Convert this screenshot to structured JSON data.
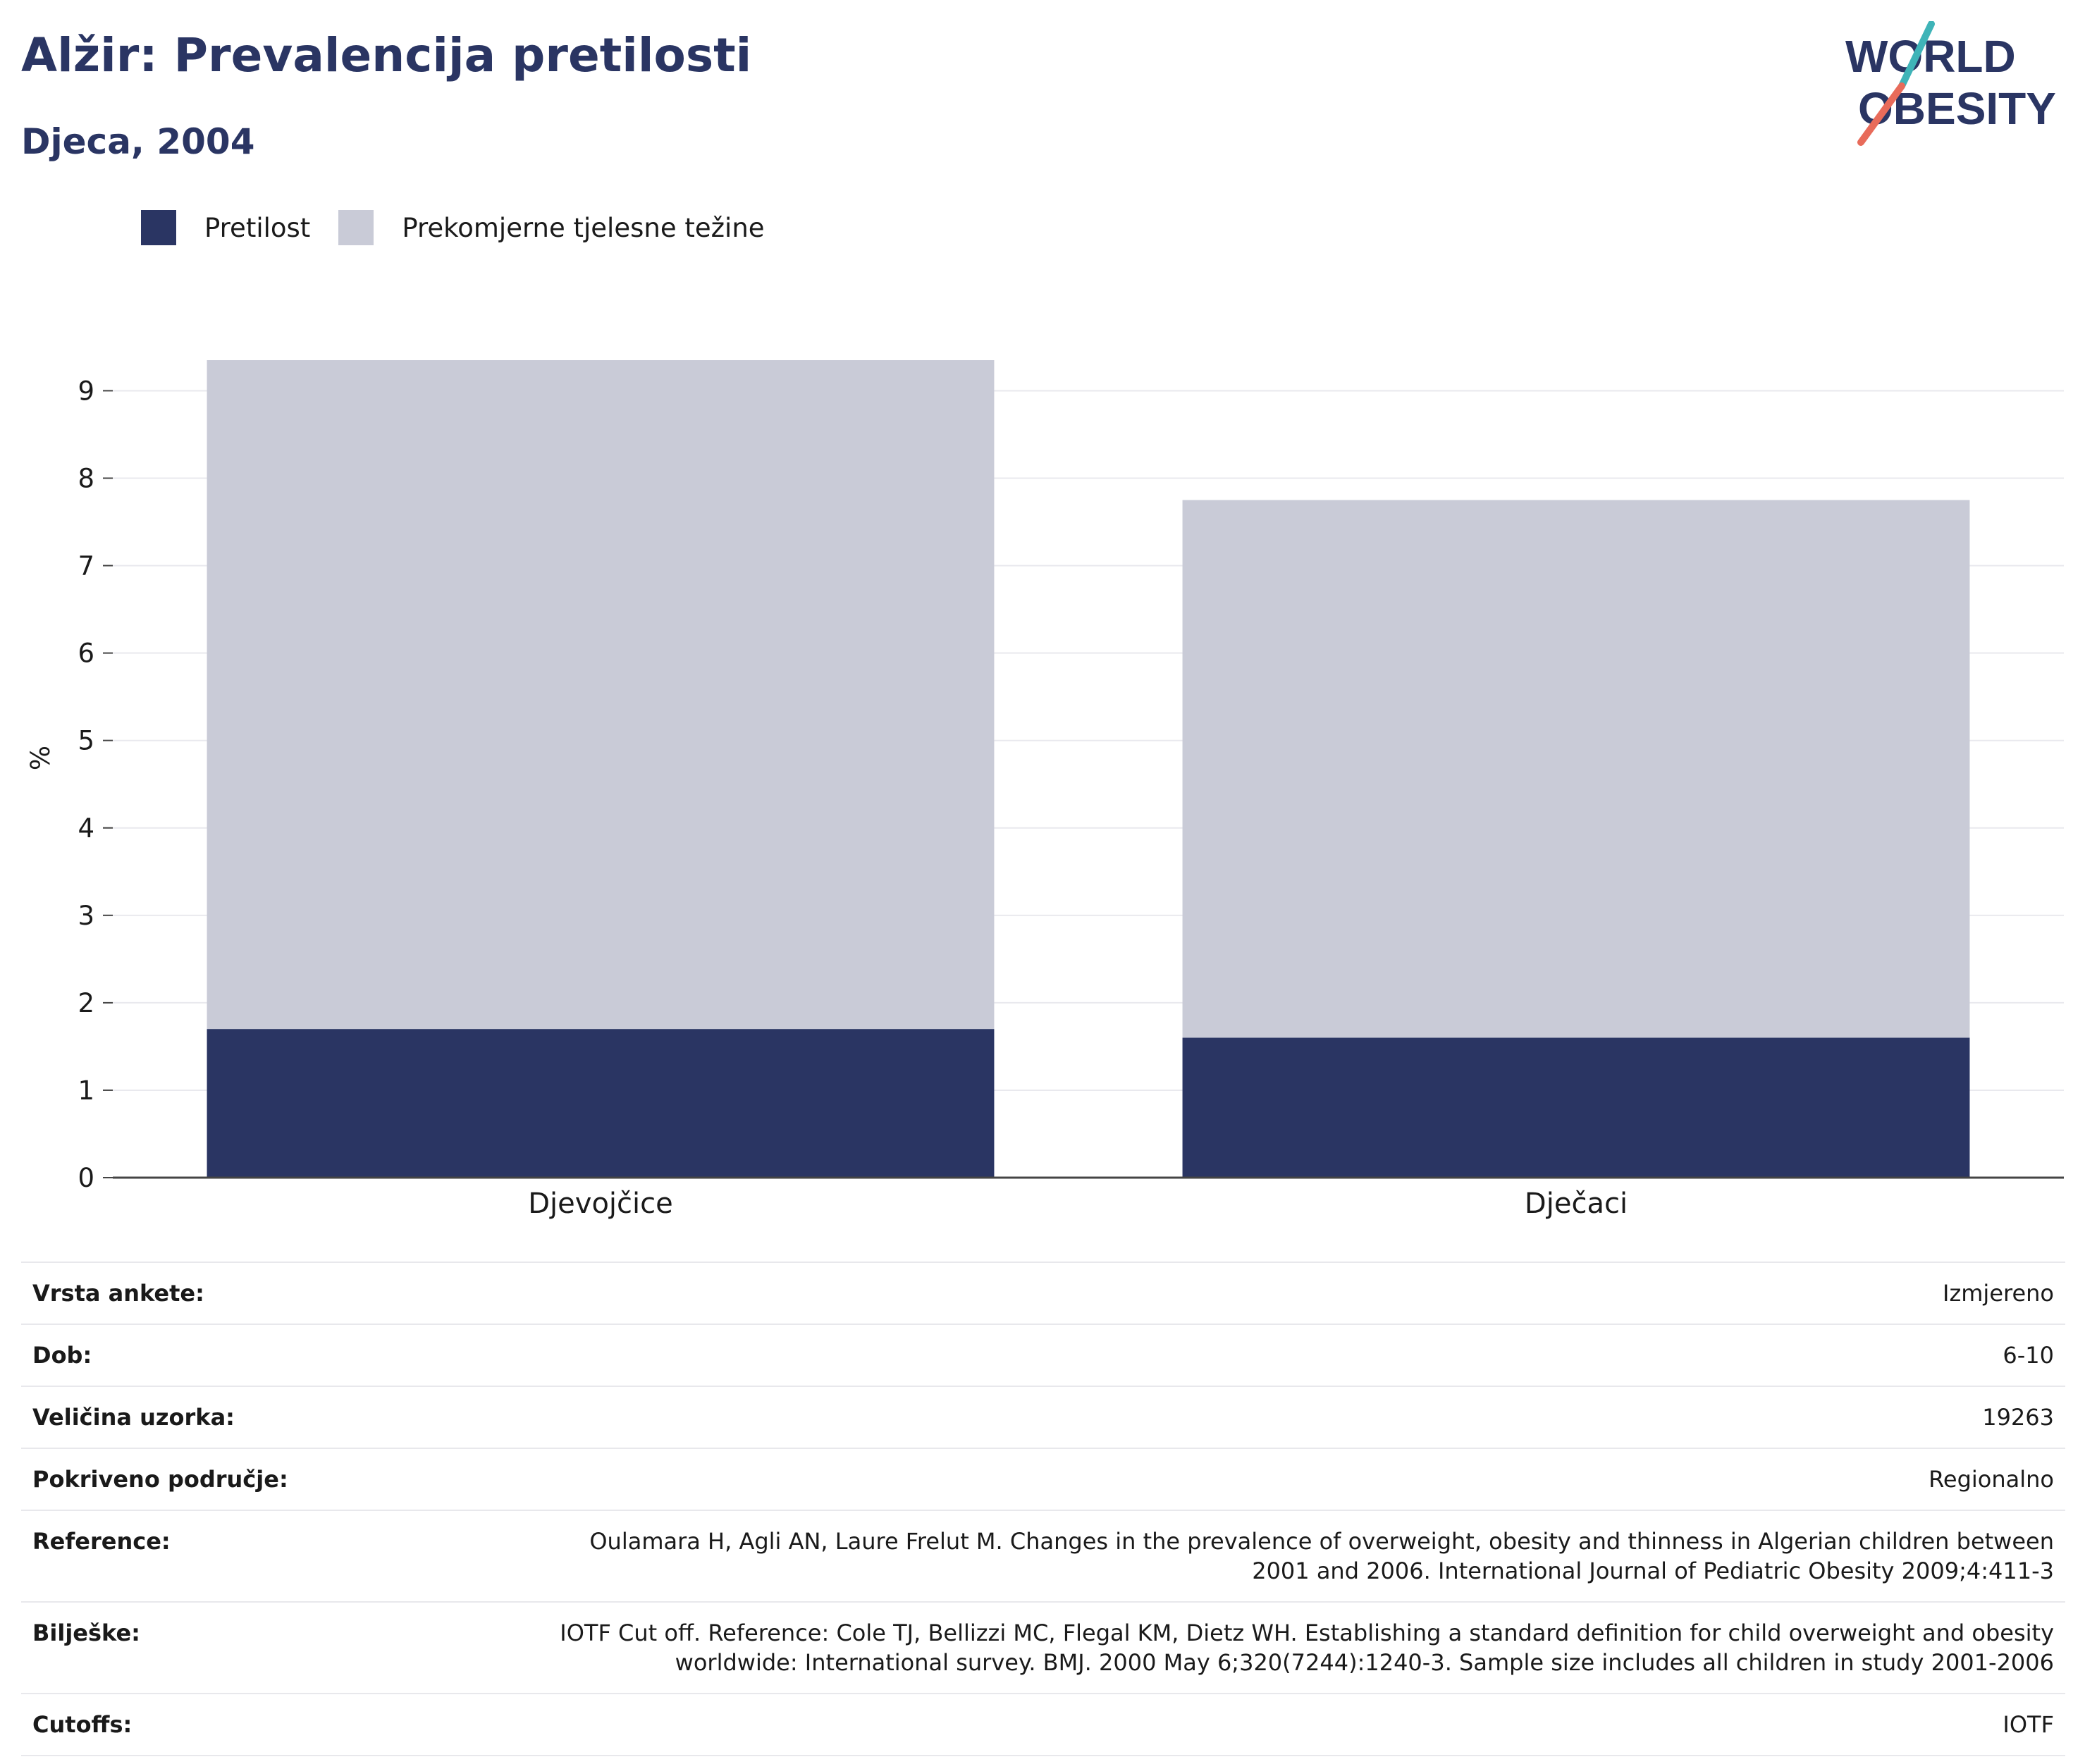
{
  "header": {
    "title": "Alžir: Prevalencija pretilosti",
    "subtitle": "Djeca, 2004"
  },
  "logo": {
    "line1": "WORLD",
    "line2": "OBESITY",
    "colors": {
      "text": "#2a3563",
      "slash_top": "#3fb4b8",
      "slash_bottom": "#e86b5a"
    }
  },
  "legend": [
    {
      "label": "Pretilost",
      "color": "#2a3563"
    },
    {
      "label": "Prekomjerne tjelesne težine",
      "color": "#c9cbd7"
    }
  ],
  "chart_data": {
    "type": "bar",
    "stacked": true,
    "categories": [
      "Djevojčice",
      "Dječaci"
    ],
    "series": [
      {
        "name": "Pretilost",
        "color": "#2a3563",
        "values": [
          1.7,
          1.6
        ]
      },
      {
        "name": "Prekomjerne tjelesne težine",
        "color": "#c9cbd7",
        "values": [
          7.65,
          6.15
        ]
      }
    ],
    "ylabel": "%",
    "xlabel": "",
    "ylim": [
      0,
      9.6
    ],
    "yticks": [
      0,
      1,
      2,
      3,
      4,
      5,
      6,
      7,
      8,
      9
    ],
    "grid": true,
    "legend_position": "top-left"
  },
  "info": [
    {
      "label": "Vrsta ankete:",
      "value": "Izmjereno"
    },
    {
      "label": "Dob:",
      "value": "6-10"
    },
    {
      "label": "Veličina uzorka:",
      "value": "19263"
    },
    {
      "label": "Pokriveno područje:",
      "value": "Regionalno"
    },
    {
      "label": "Reference:",
      "value": "Oulamara H, Agli AN, Laure Frelut M. Changes in the prevalence of overweight, obesity and thinness in Algerian children between 2001 and 2006. International Journal of Pediatric Obesity 2009;4:411-3"
    },
    {
      "label": "Bilješke:",
      "value": "IOTF Cut off. Reference: Cole TJ, Bellizzi MC, Flegal KM, Dietz WH. Establishing a standard definition for child overweight and obesity worldwide: International survey. BMJ. 2000 May 6;320(7244):1240-3. Sample size includes all children in study 2001-2006"
    },
    {
      "label": "Cutoffs:",
      "value": "IOTF"
    }
  ]
}
